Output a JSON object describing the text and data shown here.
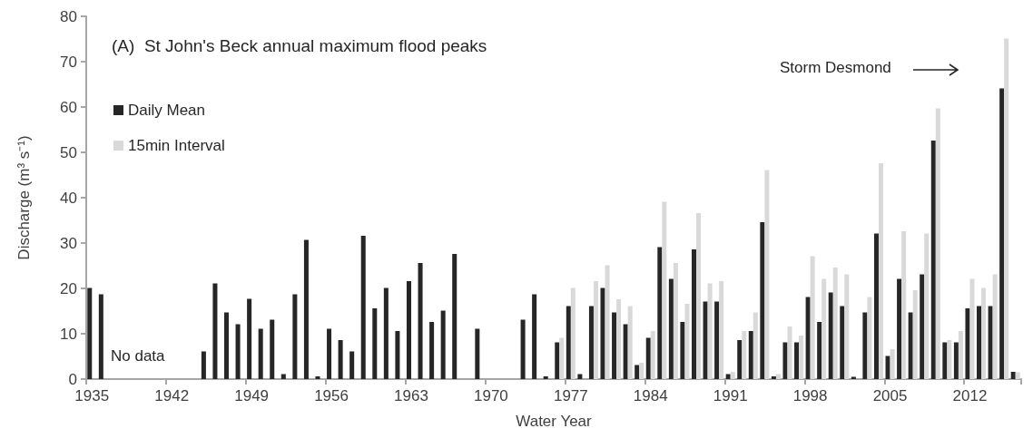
{
  "chart_data": {
    "type": "bar",
    "title": "(A)  St John's Beck annual maximum flood peaks",
    "xlabel": "Water Year",
    "ylabel": "Discharge (m³ s⁻¹)",
    "categories": [
      "1935",
      null,
      null,
      null,
      null,
      null,
      null,
      "1942",
      null,
      null,
      null,
      null,
      null,
      null,
      "1949",
      null,
      null,
      null,
      null,
      null,
      null,
      "1956",
      null,
      null,
      null,
      null,
      null,
      null,
      "1963",
      null,
      null,
      null,
      null,
      null,
      null,
      "1970",
      null,
      null,
      null,
      null,
      null,
      null,
      "1977",
      null,
      null,
      null,
      null,
      null,
      null,
      "1984",
      null,
      null,
      null,
      null,
      null,
      null,
      "1991",
      null,
      null,
      null,
      null,
      null,
      null,
      "1998",
      null,
      null,
      null,
      null,
      null,
      null,
      "2005",
      null,
      null,
      null,
      null,
      null,
      null,
      "2012",
      null,
      null,
      null,
      null
    ],
    "series": [
      {
        "name": "Daily Mean",
        "color": "#262626",
        "values": [
          20.1,
          18.7,
          null,
          null,
          null,
          null,
          null,
          null,
          null,
          null,
          6.1,
          21.1,
          14.7,
          12.1,
          17.7,
          11.1,
          13.1,
          1.1,
          18.7,
          30.7,
          0.6,
          11.1,
          8.6,
          6.1,
          31.6,
          15.6,
          20.1,
          10.6,
          21.6,
          25.6,
          12.6,
          15.1,
          27.6,
          null,
          11.1,
          null,
          null,
          null,
          13.1,
          18.7,
          0.6,
          8.1,
          16.1,
          1.1,
          16.1,
          20.1,
          14.7,
          12.1,
          3.1,
          9.1,
          29.1,
          22.1,
          12.6,
          28.6,
          17.1,
          17.1,
          1.1,
          8.6,
          10.6,
          34.6,
          0.6,
          8.1,
          8.1,
          18.1,
          12.6,
          19.1,
          16.1,
          0.5,
          14.7,
          32.1,
          5.1,
          22.1,
          14.7,
          23.1,
          52.6,
          8.1,
          8.1,
          15.6,
          16.1,
          16.1,
          64.1,
          1.6
        ]
      },
      {
        "name": "15min Interval",
        "color": "#d9d9d9",
        "values": [
          null,
          null,
          null,
          null,
          null,
          null,
          null,
          null,
          null,
          null,
          null,
          null,
          null,
          null,
          null,
          null,
          null,
          null,
          null,
          null,
          null,
          null,
          null,
          null,
          null,
          null,
          null,
          null,
          null,
          null,
          null,
          null,
          null,
          null,
          null,
          null,
          null,
          null,
          null,
          null,
          null,
          9.1,
          20.1,
          null,
          21.6,
          25.1,
          17.6,
          16.1,
          3.6,
          10.6,
          39.1,
          25.6,
          16.6,
          36.6,
          21.1,
          21.6,
          1.6,
          10.6,
          14.7,
          46.1,
          1.1,
          11.6,
          9.6,
          27.1,
          22.1,
          24.6,
          23.1,
          null,
          18.1,
          47.6,
          6.6,
          32.6,
          19.6,
          32.1,
          59.7,
          8.6,
          10.6,
          22.1,
          20.1,
          23.1,
          75.1,
          1.5
        ]
      }
    ],
    "ylim": [
      0,
      80
    ],
    "yticks": [
      0,
      10,
      20,
      30,
      40,
      50,
      60,
      70,
      80
    ],
    "grid": false,
    "legend": "top left",
    "annotations": [
      "No data",
      "Storm Desmond"
    ]
  }
}
